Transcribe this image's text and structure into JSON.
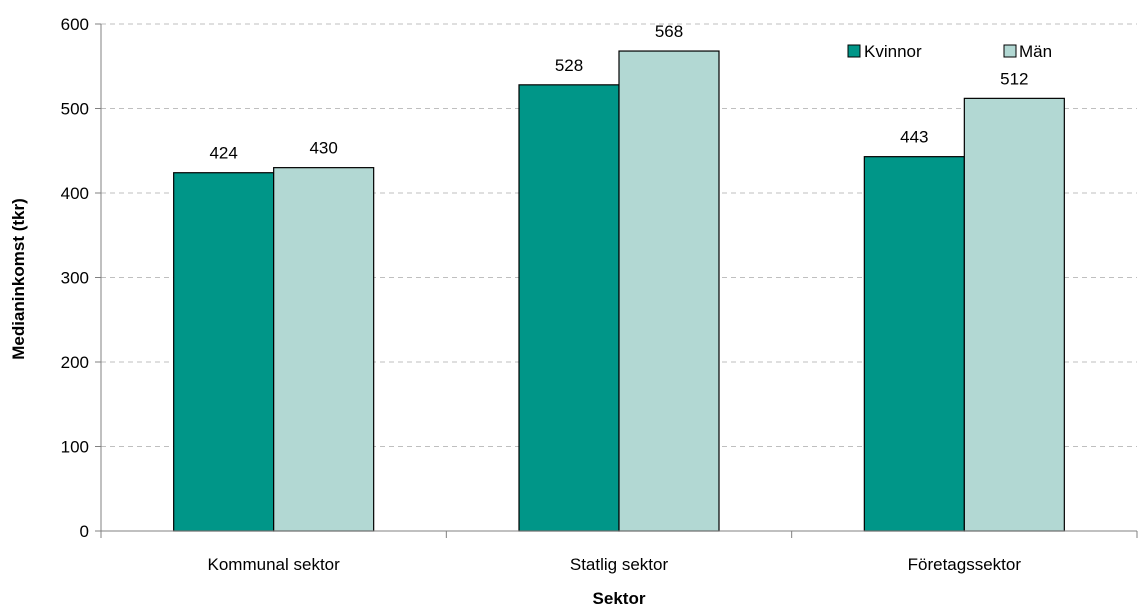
{
  "chart_data": {
    "type": "bar",
    "title": "",
    "xlabel": "Sektor",
    "ylabel": "Medianinkomst (tkr)",
    "categories": [
      "Kommunal sektor",
      "Statlig sektor",
      "Företagssektor"
    ],
    "series": [
      {
        "name": "Kvinnor",
        "values": [
          424,
          528,
          443
        ],
        "color": "#009688"
      },
      {
        "name": "Män",
        "values": [
          430,
          568,
          512
        ],
        "color": "#b2d8d3"
      }
    ],
    "ylim": [
      0,
      600
    ],
    "yticks": [
      0,
      100,
      200,
      300,
      400,
      500,
      600
    ],
    "grid": "horizontal-dashed",
    "legend_position": "top-right",
    "data_labels": true
  }
}
